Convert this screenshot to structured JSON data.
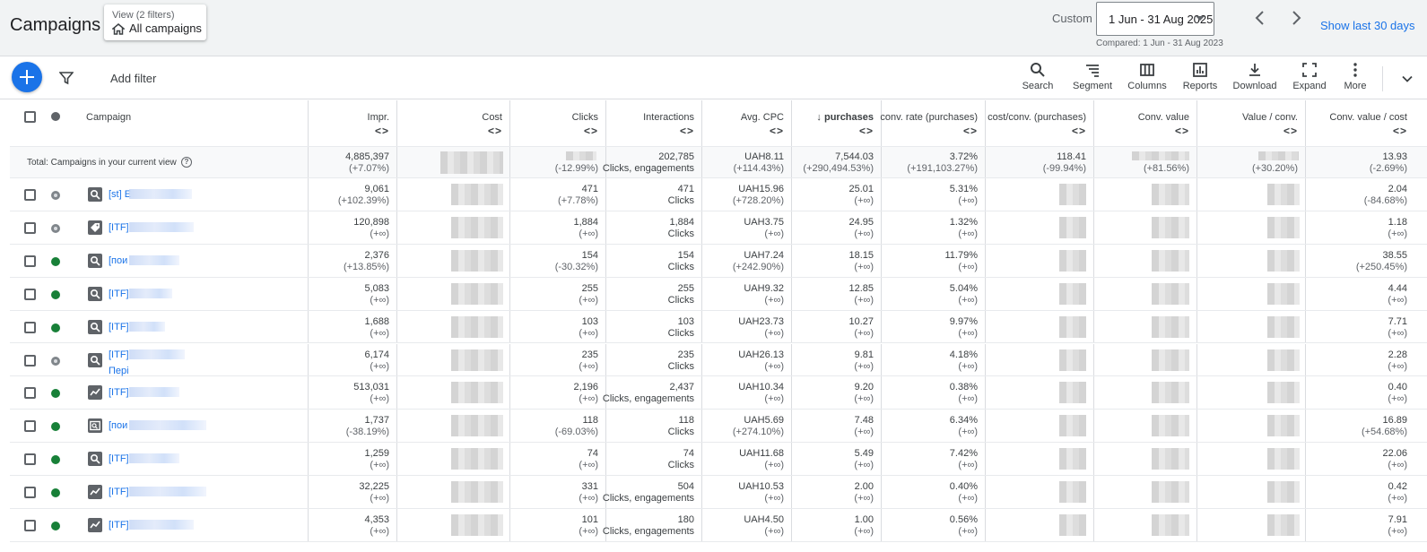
{
  "header": {
    "title": "Campaigns",
    "view_filters": "View (2 filters)",
    "view_name": "All campaigns",
    "custom_label": "Custom",
    "date_range": "1 Jun - 31 Aug 2025",
    "compared": "Compared: 1 Jun - 31 Aug 2023",
    "show_last": "Show last 30 days"
  },
  "toolbar": {
    "add_filter": "Add filter",
    "tools": [
      "Search",
      "Segment",
      "Columns",
      "Reports",
      "Download",
      "Expand",
      "More"
    ]
  },
  "columns": {
    "campaign": "Campaign",
    "impr": "Impr.",
    "cost": "Cost",
    "clicks": "Clicks",
    "interactions": "Interactions",
    "avg_cpc": "Avg. CPC",
    "purchases": "purchases",
    "conv_rate": "conv. rate (purchases)",
    "cost_conv": "cost/conv. (purchases)",
    "conv_value": "Conv. value",
    "value_conv": "Value / conv.",
    "conv_value_cost": "Conv. value / cost",
    "sort_arrows": "<>"
  },
  "total": {
    "label": "Total: Campaigns in your current view",
    "impr": "4,885,397",
    "impr_ch": "(+7.07%)",
    "clicks_ch": "(-12.99%)",
    "inter": "202,785",
    "inter_type": "Clicks, engagements",
    "cpc": "UAH8.11",
    "cpc_ch": "(+114.43%)",
    "purch": "7,544.03",
    "purch_ch": "(+290,494.53%)",
    "rate": "3.72%",
    "rate_ch": "(+191,103.27%)",
    "cost_conv": "118.41",
    "cost_conv_ch": "(-99.94%)",
    "conv_value_ch": "(+81.56%)",
    "value_conv_ch": "(+30.20%)",
    "cvc": "13.93",
    "cvc_ch": "(-2.69%)"
  },
  "rows": [
    {
      "status": "paused",
      "type": "search",
      "name": "[st] E",
      "name2": "",
      "impr": "9,061",
      "impr_ch": "(+102.39%)",
      "clicks": "471",
      "clicks_ch": "(+7.78%)",
      "inter": "471",
      "inter_type": "Clicks",
      "cpc": "UAH15.96",
      "cpc_ch": "(+728.20%)",
      "purch": "25.01",
      "purch_ch": "(+∞)",
      "rate": "5.31%",
      "rate_ch": "(+∞)",
      "cvc": "2.04",
      "cvc_ch": "(-84.68%)"
    },
    {
      "status": "paused",
      "type": "shopping",
      "name": "[ITF]",
      "name2": "",
      "impr": "120,898",
      "impr_ch": "(+∞)",
      "clicks": "1,884",
      "clicks_ch": "(+∞)",
      "inter": "1,884",
      "inter_type": "Clicks",
      "cpc": "UAH3.75",
      "cpc_ch": "(+∞)",
      "purch": "24.95",
      "purch_ch": "(+∞)",
      "rate": "1.32%",
      "rate_ch": "(+∞)",
      "cvc": "1.18",
      "cvc_ch": "(+∞)"
    },
    {
      "status": "enabled",
      "type": "search",
      "name": "[пои",
      "name2": "",
      "impr": "2,376",
      "impr_ch": "(+13.85%)",
      "clicks": "154",
      "clicks_ch": "(-30.32%)",
      "inter": "154",
      "inter_type": "Clicks",
      "cpc": "UAH7.24",
      "cpc_ch": "(+242.90%)",
      "purch": "18.15",
      "purch_ch": "(+∞)",
      "rate": "11.79%",
      "rate_ch": "(+∞)",
      "cvc": "38.55",
      "cvc_ch": "(+250.45%)"
    },
    {
      "status": "enabled",
      "type": "search",
      "name": "[ITF]",
      "name2": "",
      "impr": "5,083",
      "impr_ch": "(+∞)",
      "clicks": "255",
      "clicks_ch": "(+∞)",
      "inter": "255",
      "inter_type": "Clicks",
      "cpc": "UAH9.32",
      "cpc_ch": "(+∞)",
      "purch": "12.85",
      "purch_ch": "(+∞)",
      "rate": "5.04%",
      "rate_ch": "(+∞)",
      "cvc": "4.44",
      "cvc_ch": "(+∞)"
    },
    {
      "status": "enabled",
      "type": "search",
      "name": "[ITF]",
      "name2": "",
      "impr": "1,688",
      "impr_ch": "(+∞)",
      "clicks": "103",
      "clicks_ch": "(+∞)",
      "inter": "103",
      "inter_type": "Clicks",
      "cpc": "UAH23.73",
      "cpc_ch": "(+∞)",
      "purch": "10.27",
      "purch_ch": "(+∞)",
      "rate": "9.97%",
      "rate_ch": "(+∞)",
      "cvc": "7.71",
      "cvc_ch": "(+∞)"
    },
    {
      "status": "paused",
      "type": "search",
      "name": "[ITF]",
      "name2": "Пері",
      "impr": "6,174",
      "impr_ch": "(+∞)",
      "clicks": "235",
      "clicks_ch": "(+∞)",
      "inter": "235",
      "inter_type": "Clicks",
      "cpc": "UAH26.13",
      "cpc_ch": "(+∞)",
      "purch": "9.81",
      "purch_ch": "(+∞)",
      "rate": "4.18%",
      "rate_ch": "(+∞)",
      "cvc": "2.28",
      "cvc_ch": "(+∞)"
    },
    {
      "status": "enabled",
      "type": "pmax",
      "name": "[ITF]",
      "name2": "",
      "impr": "513,031",
      "impr_ch": "(+∞)",
      "clicks": "2,196",
      "clicks_ch": "(+∞)",
      "inter": "2,437",
      "inter_type": "Clicks, engagements",
      "cpc": "UAH10.34",
      "cpc_ch": "(+∞)",
      "purch": "9.20",
      "purch_ch": "(+∞)",
      "rate": "0.38%",
      "rate_ch": "(+∞)",
      "cvc": "0.40",
      "cvc_ch": "(+∞)"
    },
    {
      "status": "enabled",
      "type": "dsa",
      "name": "[пои",
      "name2": "",
      "impr": "1,737",
      "impr_ch": "(-38.19%)",
      "clicks": "118",
      "clicks_ch": "(-69.03%)",
      "inter": "118",
      "inter_type": "Clicks",
      "cpc": "UAH5.69",
      "cpc_ch": "(+274.10%)",
      "purch": "7.48",
      "purch_ch": "(+∞)",
      "rate": "6.34%",
      "rate_ch": "(+∞)",
      "cvc": "16.89",
      "cvc_ch": "(+54.68%)"
    },
    {
      "status": "enabled",
      "type": "search",
      "name": "[ITF]",
      "name2": "",
      "impr": "1,259",
      "impr_ch": "(+∞)",
      "clicks": "74",
      "clicks_ch": "(+∞)",
      "inter": "74",
      "inter_type": "Clicks",
      "cpc": "UAH11.68",
      "cpc_ch": "(+∞)",
      "purch": "5.49",
      "purch_ch": "(+∞)",
      "rate": "7.42%",
      "rate_ch": "(+∞)",
      "cvc": "22.06",
      "cvc_ch": "(+∞)"
    },
    {
      "status": "enabled",
      "type": "pmax",
      "name": "[ITF]",
      "name2": "",
      "impr": "32,225",
      "impr_ch": "(+∞)",
      "clicks": "331",
      "clicks_ch": "(+∞)",
      "inter": "504",
      "inter_type": "Clicks, engagements",
      "cpc": "UAH10.53",
      "cpc_ch": "(+∞)",
      "purch": "2.00",
      "purch_ch": "(+∞)",
      "rate": "0.40%",
      "rate_ch": "(+∞)",
      "cvc": "0.42",
      "cvc_ch": "(+∞)"
    },
    {
      "status": "enabled",
      "type": "pmax",
      "name": "[ITF]",
      "name2": "",
      "impr": "4,353",
      "impr_ch": "(+∞)",
      "clicks": "101",
      "clicks_ch": "(+∞)",
      "inter": "180",
      "inter_type": "Clicks, engagements",
      "cpc": "UAH4.50",
      "cpc_ch": "(+∞)",
      "purch": "1.00",
      "purch_ch": "(+∞)",
      "rate": "0.56%",
      "rate_ch": "(+∞)",
      "cvc": "7.91",
      "cvc_ch": "(+∞)"
    }
  ],
  "colors": {
    "accent": "#1a73e8",
    "enabled": "#188038",
    "paused": "#80868b"
  }
}
